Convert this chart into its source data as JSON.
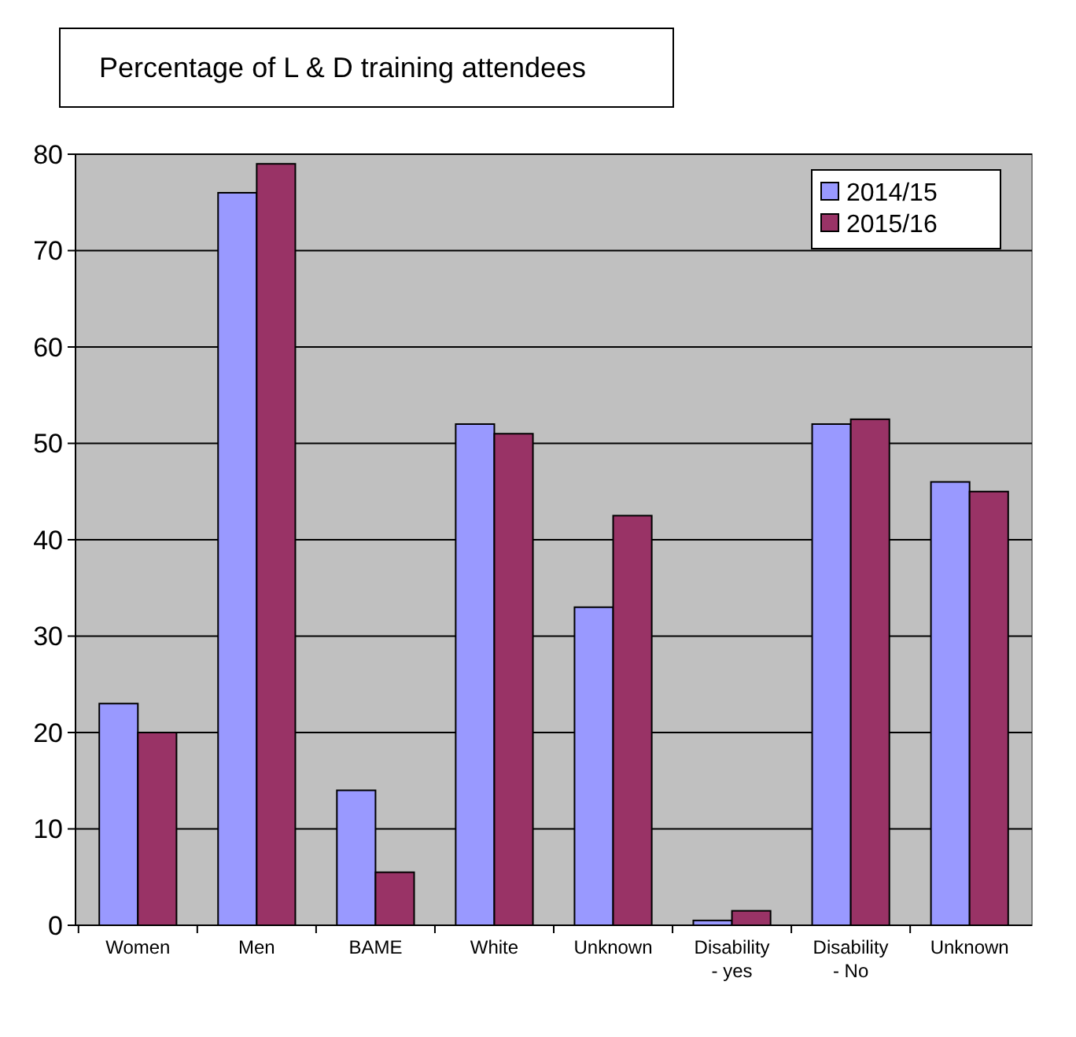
{
  "chart_data": {
    "type": "bar",
    "title": "Percentage of L & D training attendees",
    "categories": [
      "Women",
      "Men",
      "BAME",
      "White",
      "Unknown",
      "Disability - yes",
      "Disability - No",
      "Unknown"
    ],
    "series": [
      {
        "name": "2014/15",
        "color": "#9999ff",
        "values": [
          23,
          76,
          14,
          52,
          33,
          0.5,
          52,
          46
        ]
      },
      {
        "name": "2015/16",
        "color": "#993366",
        "values": [
          20,
          79,
          5.5,
          51,
          42.5,
          1.5,
          52.5,
          45
        ]
      }
    ],
    "ylim": [
      0,
      80
    ],
    "yticks": [
      0,
      10,
      20,
      30,
      40,
      50,
      60,
      70,
      80
    ],
    "grid": "y",
    "legend": "top right"
  }
}
